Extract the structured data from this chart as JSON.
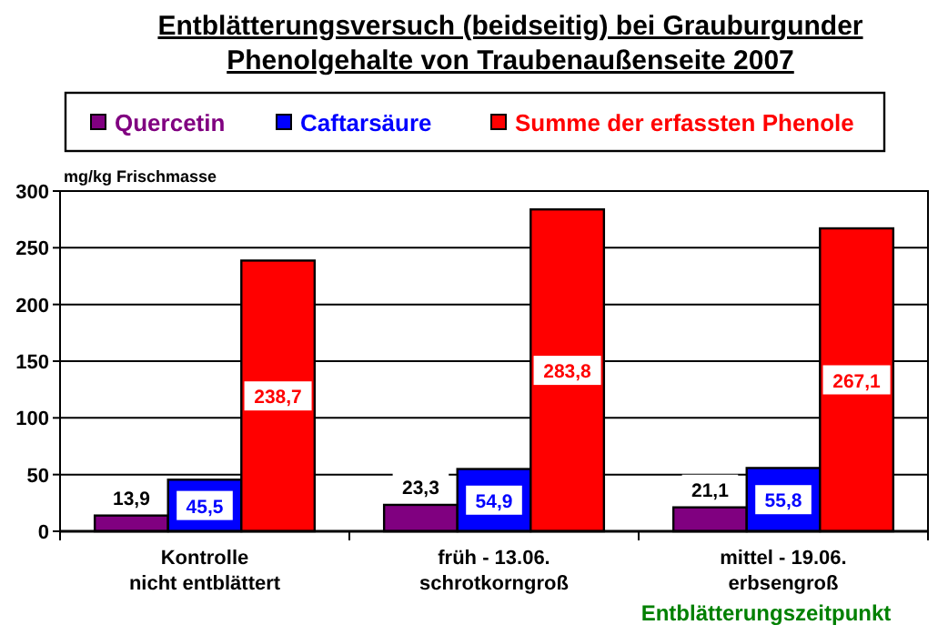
{
  "chart_data": {
    "type": "bar",
    "title": "Entblätterungsversuch (beidseitig) bei Grauburgunder\nPhenolgehalte von Traubenaußenseite 2007",
    "ylabel": "mg/kg Frischmasse",
    "xlabel": "Entblätterungszeitpunkt",
    "categories": [
      "Kontrolle\nnicht entblättert",
      "früh - 13.06.\nschrotkorngroß",
      "mittel - 19.06.\nerbsengroß"
    ],
    "series": [
      {
        "name": "Quercetin",
        "color": "#800080",
        "values": [
          13.9,
          23.3,
          21.1
        ],
        "value_labels": [
          "13,9",
          "23,3",
          "21,1"
        ]
      },
      {
        "name": "Caftarsäure",
        "color": "#0000ff",
        "values": [
          45.5,
          54.9,
          55.8
        ],
        "value_labels": [
          "45,5",
          "54,9",
          "55,8"
        ]
      },
      {
        "name": "Summe der erfassten Phenole",
        "color": "#ff0000",
        "values": [
          238.7,
          283.8,
          267.1
        ],
        "value_labels": [
          "238,7",
          "283,8",
          "267,1"
        ]
      }
    ],
    "ylim": [
      0,
      300
    ],
    "yticks": [
      0,
      50,
      100,
      150,
      200,
      250,
      300
    ],
    "grid": "y",
    "legend": "top"
  }
}
